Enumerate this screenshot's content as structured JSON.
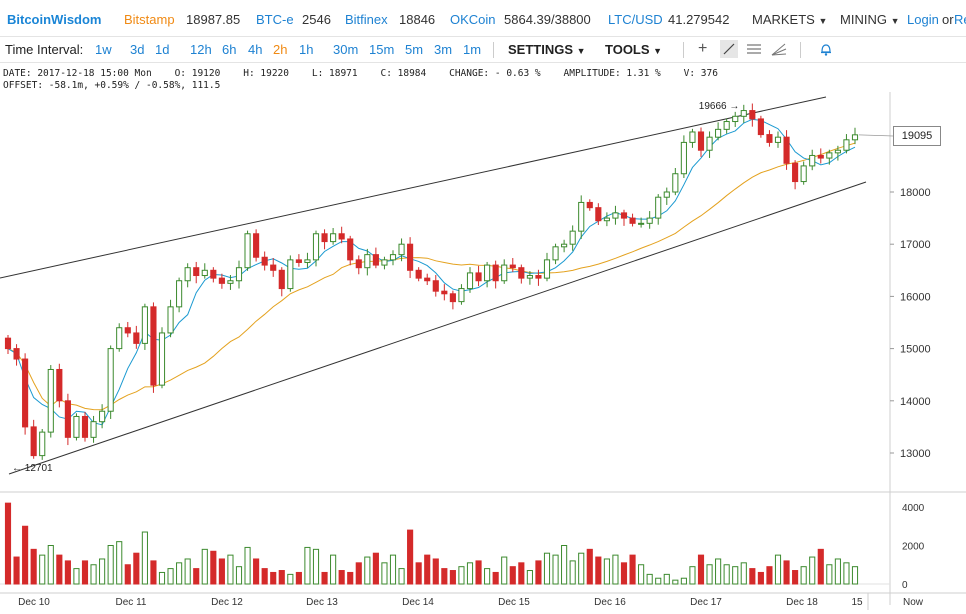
{
  "header": {
    "logo": "BitcoinWisdom",
    "exchanges": [
      {
        "name": "Bitstamp",
        "price": "18987.85"
      },
      {
        "name": "BTC-e",
        "price": "2546"
      },
      {
        "name": "Bitfinex",
        "price": "18846"
      },
      {
        "name": "OKCoin",
        "price": "5864.39/38800"
      },
      {
        "name": "LTC/USD",
        "price": "41.279542"
      }
    ],
    "menus": [
      "MARKETS",
      "MINING"
    ],
    "login": "Login",
    "or": "or",
    "register": "Re"
  },
  "toolbar": {
    "interval_label": "Time Interval:",
    "intervals": [
      "1w",
      "3d",
      "1d",
      "12h",
      "6h",
      "4h",
      "2h",
      "1h",
      "30m",
      "15m",
      "5m",
      "3m",
      "1m"
    ],
    "selected_interval": "2h",
    "settings": "SETTINGS",
    "tools": "TOOLS"
  },
  "info": {
    "line1": "DATE: 2017-12-18 15:00 Mon    O: 19120    H: 19220    L: 18971    C: 18984    CHANGE: - 0.63 %    AMPLITUDE: 1.31 %    V: 376",
    "line2": "OFFSET: -58.1m, +0.59% / -0.58%, 111.5"
  },
  "chart_data": {
    "type": "candlestick",
    "price_axis": [
      "13000",
      "14000",
      "15000",
      "16000",
      "17000",
      "18000"
    ],
    "current_price": "19095",
    "high_annotation": "19666",
    "low_annotation": "12701",
    "volume_axis": [
      "4000",
      "2000",
      "0"
    ],
    "dates": [
      "Dec 10",
      "Dec 11",
      "Dec 12",
      "Dec 13",
      "Dec 14",
      "Dec 15",
      "Dec 16",
      "Dec 17",
      "Dec 18",
      "15",
      "Now"
    ],
    "up_color": "#3c8a2e",
    "down_color": "#d42a2a",
    "ma_fast_color": "#1b9ad1",
    "ma_slow_color": "#e4a21f",
    "closes": [
      15000,
      14800,
      13500,
      12950,
      13400,
      14600,
      14000,
      13300,
      13700,
      13300,
      13600,
      13800,
      15000,
      15400,
      15300,
      15100,
      15800,
      14300,
      15300,
      15800,
      16300,
      16550,
      16400,
      16500,
      16350,
      16250,
      16300,
      16550,
      17200,
      16750,
      16600,
      16500,
      16150,
      16700,
      16650,
      16700,
      17200,
      17050,
      17200,
      17100,
      16700,
      16550,
      16800,
      16600,
      16700,
      16800,
      17000,
      16500,
      16350,
      16300,
      16100,
      16050,
      15900,
      16150,
      16450,
      16300,
      16600,
      16300,
      16600,
      16550,
      16350,
      16400,
      16350,
      16700,
      16950,
      17000,
      17250,
      17800,
      17700,
      17450,
      17500,
      17600,
      17500,
      17400,
      17400,
      17500,
      17900,
      18000,
      18350,
      18950,
      19150,
      18800,
      19050,
      19200,
      19350,
      19450,
      19560,
      19400,
      19100,
      18950,
      19050,
      18550,
      18200,
      18500,
      18700,
      18650,
      18750,
      18800,
      19000,
      19095
    ],
    "volumes": [
      4200,
      1400,
      3000,
      1800,
      1500,
      2000,
      1500,
      1200,
      800,
      1200,
      1000,
      1300,
      2000,
      2200,
      1000,
      1600,
      2700,
      1200,
      600,
      800,
      1100,
      1300,
      800,
      1800,
      1700,
      1300,
      1500,
      900,
      1900,
      1300,
      800,
      600,
      700,
      500,
      600,
      1900,
      1800,
      600,
      1500,
      700,
      600,
      1100,
      1400,
      1600,
      1100,
      1500,
      800,
      2800,
      1100,
      1500,
      1300,
      800,
      700,
      900,
      1100,
      1200,
      800,
      600,
      1400,
      900,
      1100,
      700,
      1200,
      1600,
      1500,
      2000,
      1200,
      1600,
      1800,
      1400,
      1300,
      1500,
      1100,
      1500,
      1000,
      500,
      300,
      500,
      200,
      300,
      900,
      1500,
      1000,
      1300,
      1000,
      900,
      1100,
      800,
      600,
      900,
      1500,
      1200,
      700,
      900,
      1400,
      1800,
      1000,
      1300,
      1100,
      900
    ]
  }
}
